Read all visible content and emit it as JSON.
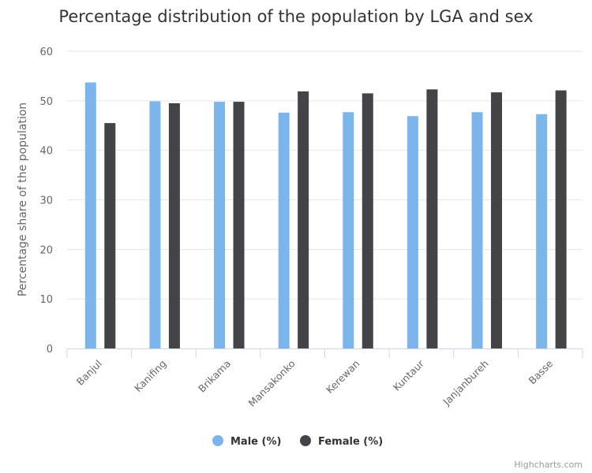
{
  "chart_data": {
    "type": "bar",
    "orientation": "vertical",
    "title": "Percentage distribution of the population by LGA and sex",
    "xlabel": "",
    "ylabel": "Percentage share of the population",
    "ylim": [
      0,
      60
    ],
    "yticks": [
      0,
      10,
      20,
      30,
      40,
      50,
      60
    ],
    "grid": true,
    "legend_position": "bottom-center",
    "categories": [
      "Banjul",
      "Kanifing",
      "Brikama",
      "Mansakonko",
      "Kerewan",
      "Kuntaur",
      "Janjanbureh",
      "Basse"
    ],
    "series": [
      {
        "name": "Male (%)",
        "color": "#7cb5ec",
        "values": [
          53.7,
          49.9,
          49.8,
          47.6,
          47.7,
          46.9,
          47.7,
          47.3
        ]
      },
      {
        "name": "Female (%)",
        "color": "#434348",
        "values": [
          45.5,
          49.5,
          49.8,
          51.9,
          51.5,
          52.3,
          51.7,
          52.1
        ]
      }
    ]
  },
  "credits": "Highcharts.com"
}
